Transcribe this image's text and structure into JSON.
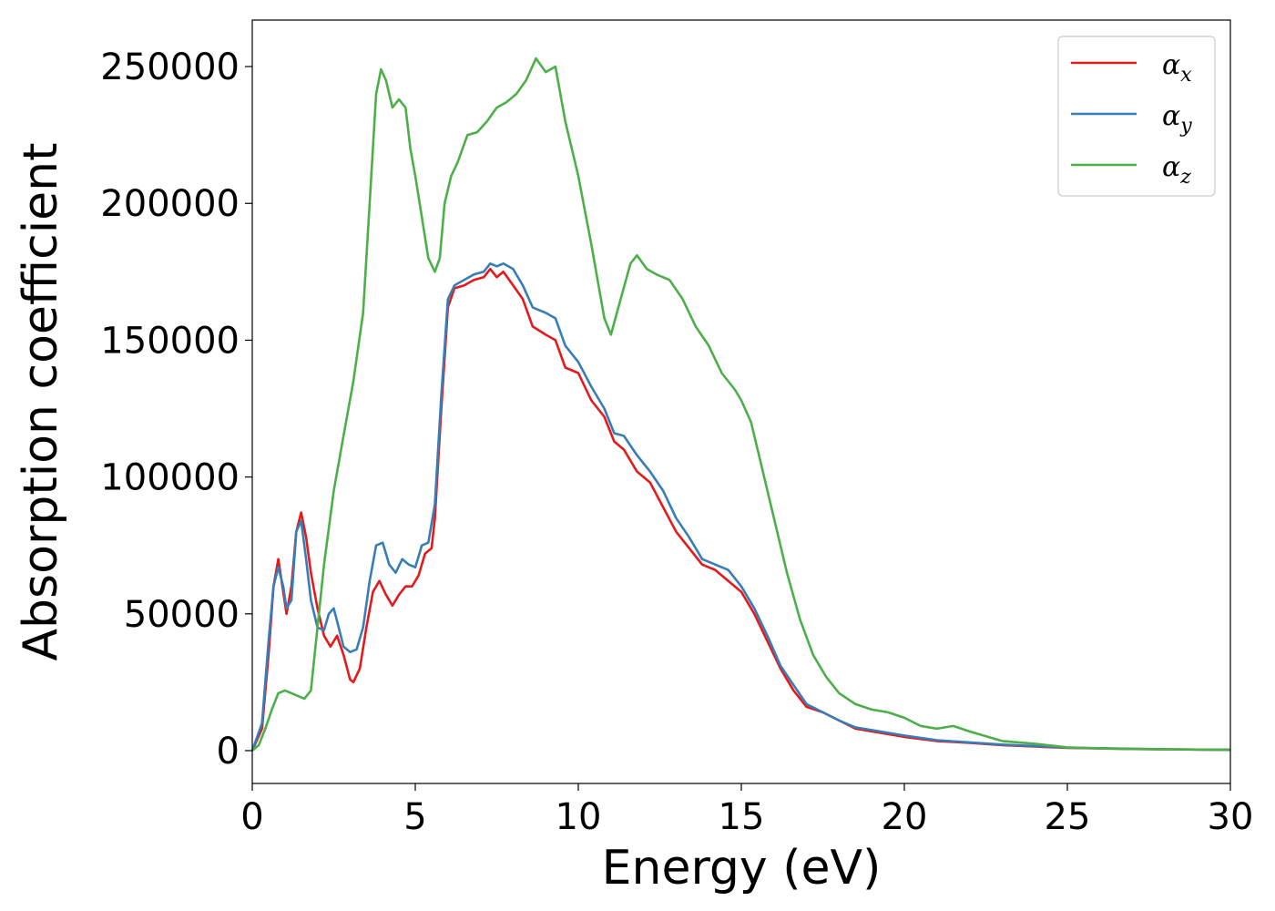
{
  "chart_data": {
    "type": "line",
    "title": "",
    "xlabel": "Energy (eV)",
    "ylabel": "Absorption coefficient",
    "xlim": [
      0,
      30
    ],
    "ylim": [
      -12000,
      267000
    ],
    "xticks": [
      0,
      5,
      10,
      15,
      20,
      25,
      30
    ],
    "yticks": [
      0,
      50000,
      100000,
      150000,
      200000,
      250000
    ],
    "grid": false,
    "legend_position": "top-right",
    "series": [
      {
        "name": "αx",
        "legend_main": "α",
        "legend_sub": "x",
        "color": "#e41a1c",
        "x": [
          0,
          0.3,
          0.5,
          0.65,
          0.8,
          0.95,
          1.05,
          1.2,
          1.35,
          1.5,
          1.65,
          1.8,
          2.0,
          2.2,
          2.4,
          2.6,
          2.8,
          3.0,
          3.1,
          3.3,
          3.5,
          3.7,
          3.9,
          4.1,
          4.3,
          4.5,
          4.7,
          4.9,
          5.1,
          5.3,
          5.5,
          5.6,
          5.8,
          6.0,
          6.2,
          6.5,
          6.8,
          7.1,
          7.3,
          7.5,
          7.7,
          8.0,
          8.3,
          8.6,
          9.0,
          9.3,
          9.6,
          10.0,
          10.4,
          10.8,
          11.1,
          11.4,
          11.8,
          12.2,
          12.6,
          13.0,
          13.4,
          13.8,
          14.2,
          14.6,
          15.0,
          15.4,
          15.8,
          16.2,
          16.6,
          17.0,
          17.5,
          18.0,
          18.5,
          19.0,
          19.5,
          20.0,
          21.0,
          22.0,
          23.0,
          24.0,
          25.0,
          26.0,
          27.0,
          28.0,
          29.0,
          30.0
        ],
        "y": [
          0,
          8000,
          35000,
          60000,
          70000,
          58000,
          50000,
          60000,
          80000,
          87000,
          78000,
          65000,
          52000,
          42000,
          38000,
          42000,
          35000,
          26000,
          25000,
          30000,
          45000,
          58000,
          62000,
          57000,
          53000,
          57000,
          60000,
          60000,
          64000,
          72000,
          74000,
          85000,
          125000,
          162000,
          169000,
          170000,
          172000,
          173000,
          176000,
          173000,
          175000,
          170000,
          165000,
          155000,
          152000,
          150000,
          140000,
          138000,
          128000,
          122000,
          113000,
          110000,
          102000,
          98000,
          89000,
          80000,
          74000,
          68000,
          66000,
          62000,
          58000,
          50000,
          40000,
          30000,
          22000,
          16000,
          14000,
          11000,
          8000,
          7000,
          6000,
          5000,
          3500,
          2800,
          2000,
          1500,
          1000,
          800,
          600,
          500,
          400,
          300
        ]
      },
      {
        "name": "αy",
        "legend_main": "α",
        "legend_sub": "y",
        "color": "#377eb8",
        "x": [
          0,
          0.3,
          0.5,
          0.65,
          0.8,
          0.95,
          1.05,
          1.2,
          1.35,
          1.5,
          1.65,
          1.8,
          2.0,
          2.2,
          2.35,
          2.5,
          2.65,
          2.8,
          3.0,
          3.2,
          3.4,
          3.6,
          3.8,
          4.0,
          4.2,
          4.4,
          4.6,
          4.8,
          5.0,
          5.2,
          5.4,
          5.6,
          5.8,
          6.0,
          6.2,
          6.5,
          6.8,
          7.1,
          7.3,
          7.5,
          7.7,
          8.0,
          8.3,
          8.6,
          9.0,
          9.3,
          9.6,
          10.0,
          10.4,
          10.8,
          11.1,
          11.4,
          11.8,
          12.2,
          12.6,
          13.0,
          13.4,
          13.8,
          14.2,
          14.6,
          15.0,
          15.4,
          15.8,
          16.2,
          16.6,
          17.0,
          17.5,
          18.0,
          18.5,
          19.0,
          19.5,
          20.0,
          21.0,
          22.0,
          23.0,
          24.0,
          25.0,
          26.0,
          27.0,
          28.0,
          29.0,
          30.0
        ],
        "y": [
          0,
          10000,
          40000,
          60000,
          67000,
          60000,
          52000,
          55000,
          80000,
          84000,
          70000,
          55000,
          45000,
          44000,
          50000,
          52000,
          45000,
          38000,
          36000,
          37000,
          45000,
          62000,
          75000,
          76000,
          68000,
          65000,
          70000,
          68000,
          67000,
          75000,
          76000,
          90000,
          130000,
          165000,
          170000,
          172000,
          174000,
          175000,
          178000,
          177000,
          178000,
          176000,
          170000,
          162000,
          160000,
          158000,
          148000,
          142000,
          133000,
          125000,
          116000,
          115000,
          108000,
          102000,
          95000,
          85000,
          78000,
          70000,
          68000,
          66000,
          60000,
          52000,
          42000,
          31000,
          24000,
          17000,
          14000,
          11000,
          8500,
          7500,
          6500,
          5500,
          3800,
          3000,
          2200,
          1700,
          1100,
          900,
          700,
          500,
          400,
          300
        ]
      },
      {
        "name": "αz",
        "legend_main": "α",
        "legend_sub": "z",
        "color": "#4daf4a",
        "x": [
          0,
          0.2,
          0.4,
          0.6,
          0.8,
          1.0,
          1.2,
          1.4,
          1.6,
          1.8,
          2.0,
          2.2,
          2.5,
          2.8,
          3.1,
          3.4,
          3.6,
          3.8,
          3.95,
          4.1,
          4.3,
          4.5,
          4.7,
          4.85,
          5.0,
          5.2,
          5.4,
          5.6,
          5.75,
          5.9,
          6.1,
          6.3,
          6.6,
          6.9,
          7.2,
          7.5,
          7.8,
          8.1,
          8.4,
          8.7,
          9.0,
          9.3,
          9.6,
          10.0,
          10.4,
          10.8,
          11.0,
          11.3,
          11.6,
          11.8,
          12.1,
          12.4,
          12.8,
          13.2,
          13.6,
          14.0,
          14.4,
          14.8,
          15.0,
          15.3,
          15.6,
          16.0,
          16.4,
          16.8,
          17.2,
          17.6,
          18.0,
          18.5,
          19.0,
          19.5,
          20.0,
          20.5,
          21.0,
          21.5,
          22.0,
          23.0,
          24.0,
          25.0,
          26.0,
          27.0,
          28.0,
          29.0,
          30.0
        ],
        "y": [
          0,
          2000,
          8000,
          15000,
          21000,
          22000,
          21000,
          20000,
          19000,
          22000,
          45000,
          68000,
          95000,
          115000,
          135000,
          160000,
          200000,
          240000,
          249000,
          245000,
          235000,
          238000,
          235000,
          220000,
          210000,
          195000,
          180000,
          175000,
          180000,
          200000,
          210000,
          215000,
          225000,
          226000,
          230000,
          235000,
          237000,
          240000,
          245000,
          253000,
          248000,
          250000,
          230000,
          210000,
          185000,
          158000,
          152000,
          165000,
          178000,
          181000,
          176000,
          174000,
          172000,
          165000,
          155000,
          148000,
          138000,
          132000,
          128000,
          120000,
          105000,
          85000,
          65000,
          48000,
          35000,
          27000,
          21000,
          17000,
          15000,
          14000,
          12000,
          9000,
          8000,
          9000,
          7000,
          3500,
          2500,
          1200,
          800,
          600,
          500,
          400,
          300
        ]
      }
    ]
  }
}
